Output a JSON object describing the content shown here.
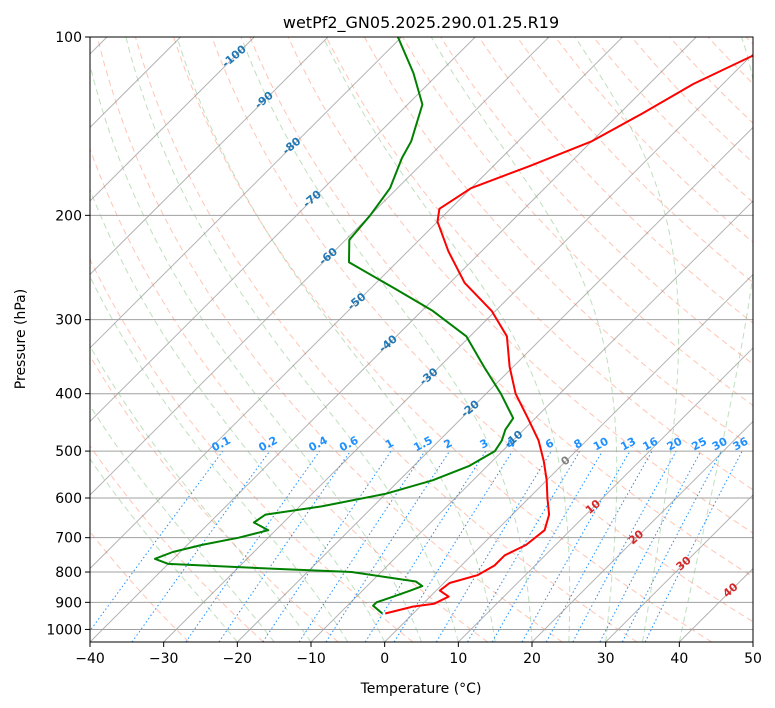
{
  "chart_data": {
    "type": "line",
    "title": "wetPf2_GN05.2025.290.01.25.R19",
    "xlabel": "Temperature (°C)",
    "ylabel": "Pressure (hPa)",
    "xlim": [
      -40,
      50
    ],
    "ylim": [
      1050,
      100
    ],
    "y_scale": "log",
    "skew": 35,
    "grid": true,
    "x_ticks": [
      -40,
      -30,
      -20,
      -10,
      0,
      10,
      20,
      30,
      40,
      50
    ],
    "y_ticks": [
      100,
      200,
      300,
      400,
      500,
      600,
      700,
      800,
      900,
      1000
    ],
    "colors": {
      "temperature": "#ff0000",
      "dewpoint": "#008000",
      "dry_adiabats": "#ff8c69",
      "moist_adiabats": "#80c080",
      "mixing_ratio": "#1e90ff",
      "isotherms": "#808080",
      "isotherm_labels": "#1f77b4",
      "hot_isotherm_labels": "#d62728",
      "zero_isotherm": "#808080"
    },
    "series": [
      {
        "key": "temperature",
        "points": [
          [
            940,
            -3.8
          ],
          [
            915,
            -1.0
          ],
          [
            905,
            1.5
          ],
          [
            880,
            2.5
          ],
          [
            860,
            0.5
          ],
          [
            835,
            0.8
          ],
          [
            810,
            3.5
          ],
          [
            780,
            4.5
          ],
          [
            750,
            4.5
          ],
          [
            720,
            6.0
          ],
          [
            680,
            6.5
          ],
          [
            640,
            5.0
          ],
          [
            600,
            2.5
          ],
          [
            560,
            0.0
          ],
          [
            520,
            -3.0
          ],
          [
            480,
            -6.5
          ],
          [
            440,
            -11.0
          ],
          [
            400,
            -16.0
          ],
          [
            360,
            -20.5
          ],
          [
            320,
            -25.0
          ],
          [
            290,
            -30.5
          ],
          [
            260,
            -38.0
          ],
          [
            230,
            -44.5
          ],
          [
            205,
            -50.0
          ],
          [
            195,
            -51.5
          ],
          [
            180,
            -50.0
          ],
          [
            165,
            -45.0
          ],
          [
            150,
            -40.0
          ],
          [
            135,
            -37.0
          ],
          [
            120,
            -34.0
          ],
          [
            100,
            -27.0
          ]
        ]
      },
      {
        "key": "dewpoint",
        "points": [
          [
            940,
            -4.2
          ],
          [
            912,
            -6.5
          ],
          [
            900,
            -6.5
          ],
          [
            880,
            -5.0
          ],
          [
            860,
            -3.5
          ],
          [
            845,
            -2.5
          ],
          [
            830,
            -4.0
          ],
          [
            800,
            -14.0
          ],
          [
            790,
            -25.0
          ],
          [
            775,
            -40.0
          ],
          [
            760,
            -42.5
          ],
          [
            740,
            -41.0
          ],
          [
            720,
            -38.0
          ],
          [
            700,
            -34.0
          ],
          [
            680,
            -31.0
          ],
          [
            660,
            -34.0
          ],
          [
            640,
            -33.5
          ],
          [
            620,
            -27.0
          ],
          [
            590,
            -20.0
          ],
          [
            560,
            -15.5
          ],
          [
            530,
            -12.5
          ],
          [
            500,
            -11.0
          ],
          [
            480,
            -11.5
          ],
          [
            460,
            -12.5
          ],
          [
            440,
            -13.0
          ],
          [
            400,
            -18.0
          ],
          [
            360,
            -24.0
          ],
          [
            320,
            -30.5
          ],
          [
            290,
            -38.5
          ],
          [
            265,
            -47.0
          ],
          [
            240,
            -56.5
          ],
          [
            220,
            -59.5
          ],
          [
            200,
            -60.0
          ],
          [
            180,
            -61.0
          ],
          [
            160,
            -63.5
          ],
          [
            150,
            -64.5
          ],
          [
            130,
            -68.0
          ],
          [
            115,
            -73.5
          ],
          [
            100,
            -80.5
          ]
        ]
      }
    ],
    "isotherm_labels": [
      "-100",
      "-90",
      "-80",
      "-70",
      "-60",
      "-50",
      "-40",
      "-30",
      "-20",
      "-10"
    ],
    "zero_isotherm_label": "0",
    "hot_isotherm_labels": [
      "10",
      "20",
      "30",
      "40"
    ],
    "mixing_ratio_labels": [
      "0.1",
      "0.2",
      "0.4",
      "0.6",
      "1",
      "1.5",
      "2",
      "3",
      "4",
      "6",
      "8",
      "10",
      "13",
      "16",
      "20",
      "25",
      "30",
      "36"
    ]
  }
}
